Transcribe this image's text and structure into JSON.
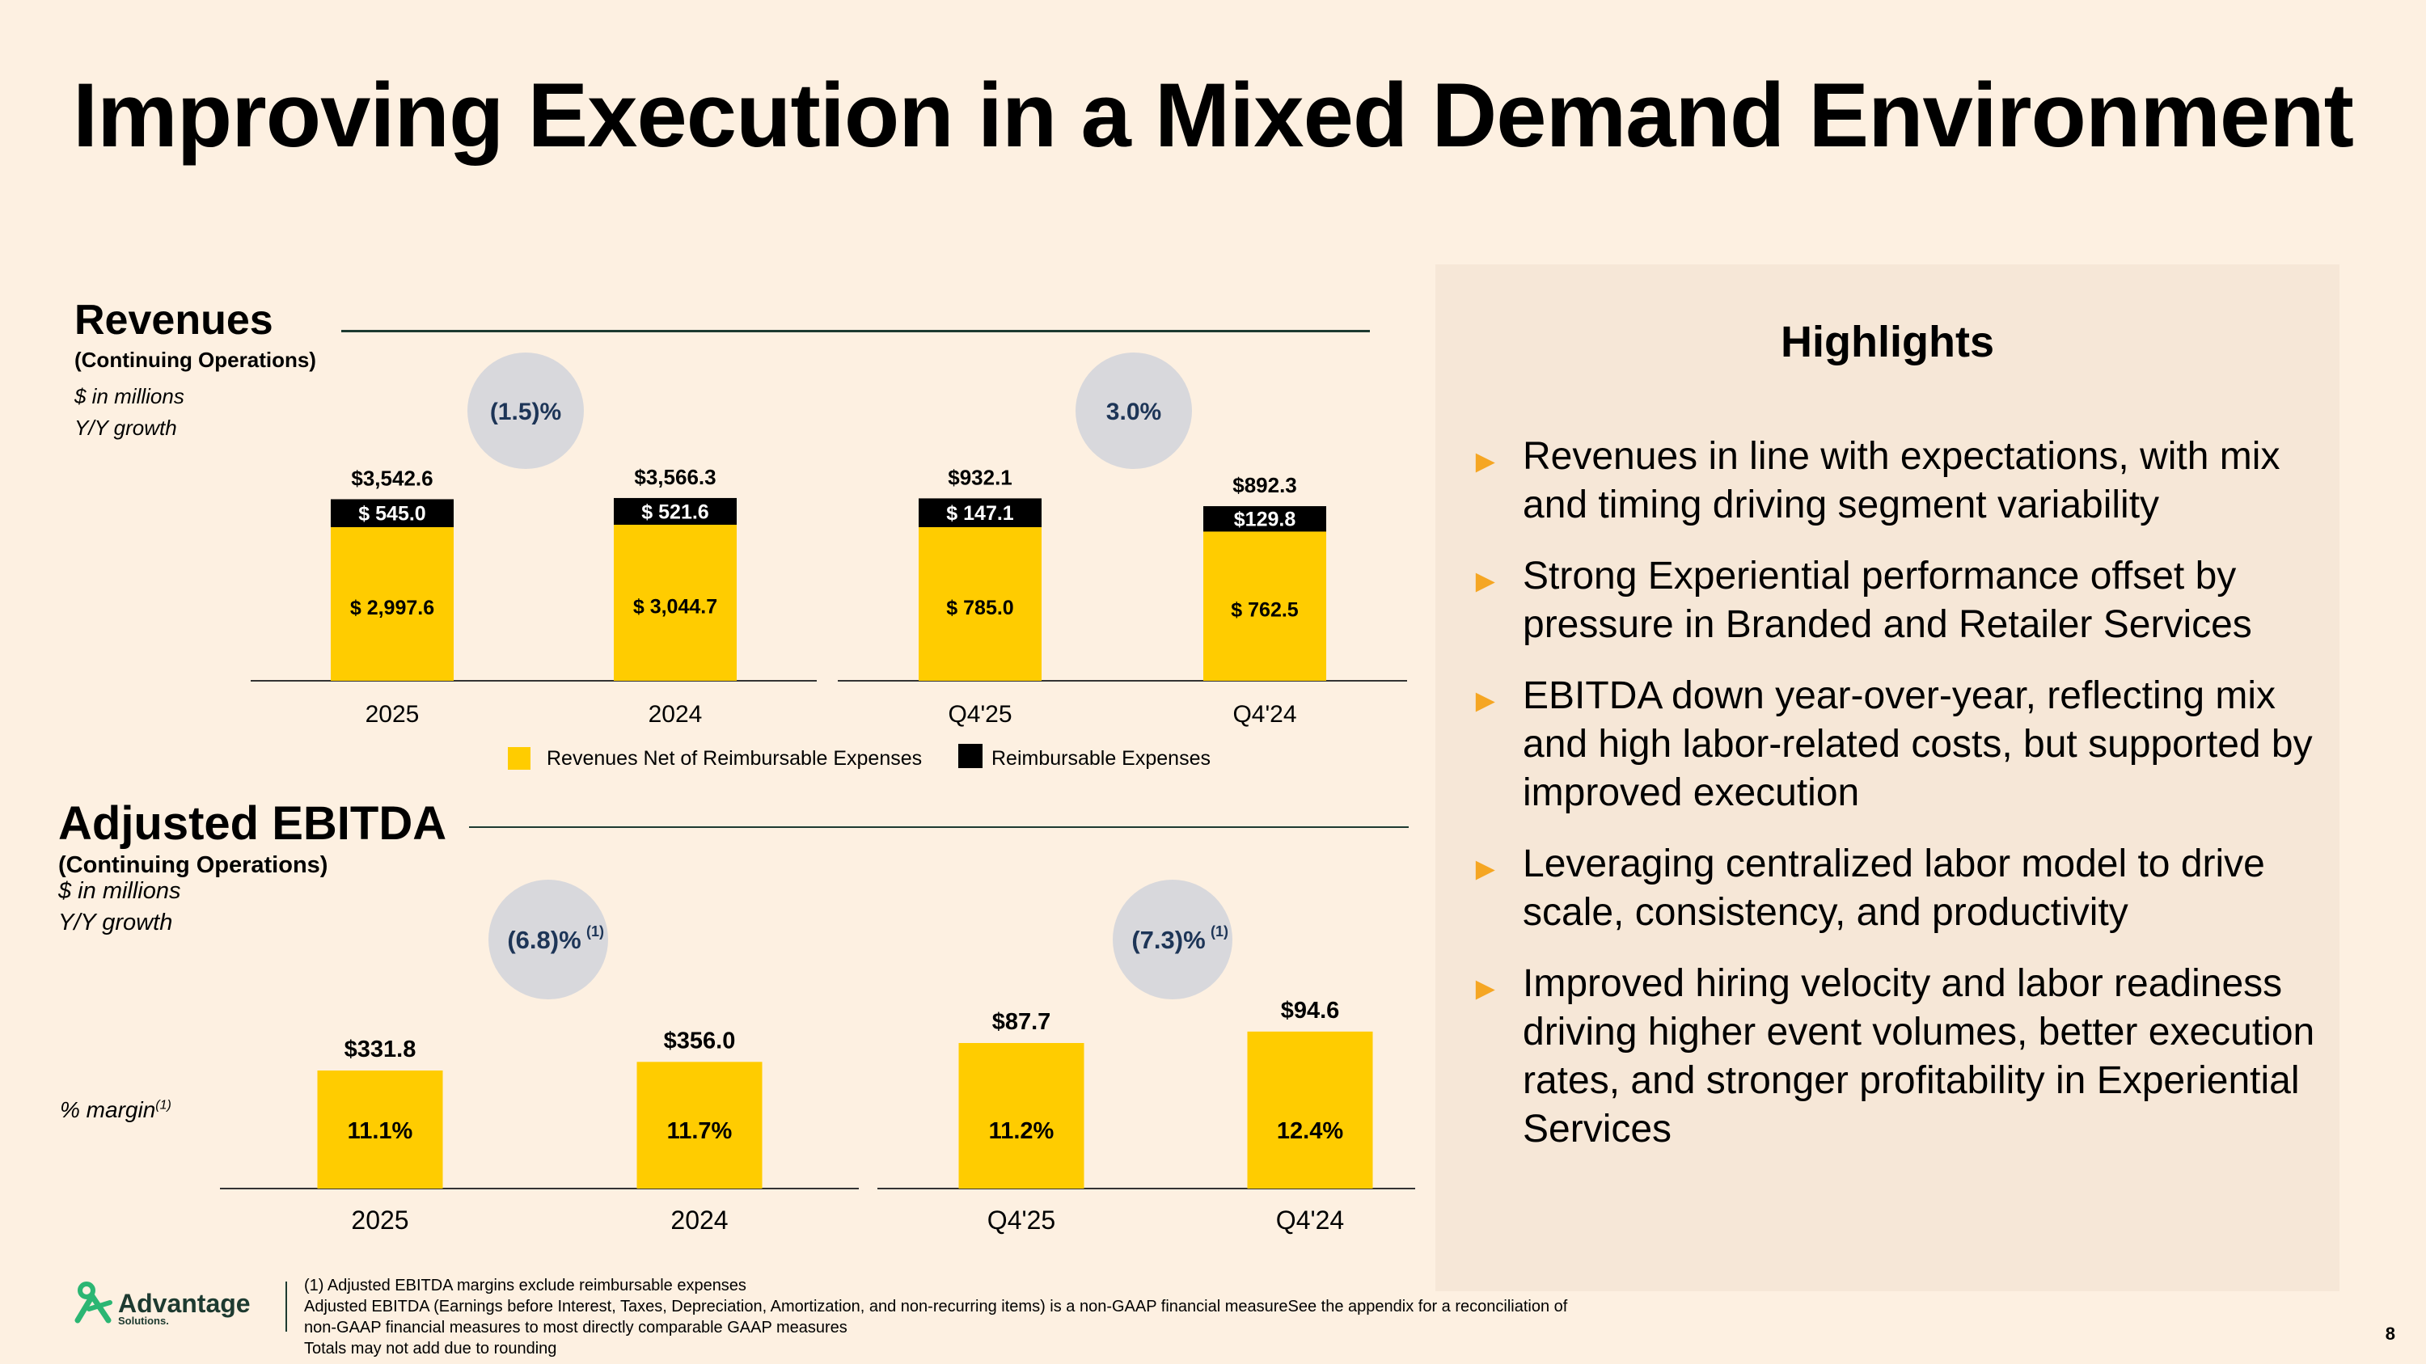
{
  "title": "Improving Execution in a Mixed Demand Environment",
  "colors": {
    "background": "#fdf0e1",
    "panel": "#f6e7d7",
    "bar": "#ffcc00",
    "reimbursable": "#000000",
    "growth_bubble": "#d8d8dc",
    "arrow": "#f5a623",
    "brand": "#1d3a30"
  },
  "revenues": {
    "title": "Revenues",
    "subtitle": "(Continuing Operations)",
    "units": "$ in millions",
    "growth_label": "Y/Y growth",
    "legend": {
      "net": "Revenues Net of Reimbursable Expenses",
      "reimb": "Reimbursable Expenses"
    }
  },
  "ebitda": {
    "title": "Adjusted EBITDA",
    "subtitle": "(Continuing Operations)",
    "units": "$ in millions",
    "growth_label": "Y/Y growth",
    "margin_label": "% margin",
    "margin_sup": "(1)"
  },
  "chart_data": [
    {
      "type": "bar",
      "stacked": true,
      "title": "Revenues",
      "groups": [
        {
          "categories": [
            "2025",
            "2024"
          ],
          "growth": "(1.5)%"
        },
        {
          "categories": [
            "Q4'25",
            "Q4'24"
          ],
          "growth": "3.0%"
        }
      ],
      "categories": [
        "2025",
        "2024",
        "Q4'25",
        "Q4'24"
      ],
      "series": [
        {
          "name": "Revenues Net of Reimbursable Expenses",
          "values": [
            2997.6,
            3044.7,
            785.0,
            762.5
          ],
          "labels": [
            "$ 2,997.6",
            "$ 3,044.7",
            "$ 785.0",
            "$ 762.5"
          ]
        },
        {
          "name": "Reimbursable Expenses",
          "values": [
            545.0,
            521.6,
            147.1,
            129.8
          ],
          "labels": [
            "$ 545.0",
            "$ 521.6",
            "$ 147.1",
            "$129.8"
          ]
        }
      ],
      "totals": [
        "$3,542.6",
        "$3,566.3",
        "$932.1",
        "$892.3"
      ],
      "ylabel": "$ in millions"
    },
    {
      "type": "bar",
      "title": "Adjusted EBITDA",
      "groups": [
        {
          "categories": [
            "2025",
            "2024"
          ],
          "growth": "(6.8)%",
          "growth_sup": "(1)"
        },
        {
          "categories": [
            "Q4'25",
            "Q4'24"
          ],
          "growth": "(7.3)%",
          "growth_sup": "(1)"
        }
      ],
      "categories": [
        "2025",
        "2024",
        "Q4'25",
        "Q4'24"
      ],
      "values": [
        331.8,
        356.0,
        87.7,
        94.6
      ],
      "value_labels": [
        "$331.8",
        "$356.0",
        "$87.7",
        "$94.6"
      ],
      "margins": [
        "11.1%",
        "11.7%",
        "11.2%",
        "12.4%"
      ],
      "ylabel": "$ in millions"
    }
  ],
  "highlights": {
    "title": "Highlights",
    "items": [
      "Revenues in line with expectations, with mix and timing driving segment variability",
      "Strong Experiential performance offset by pressure in Branded and Retailer Services",
      "EBITDA down year-over-year, reflecting mix and high labor-related costs, but supported by improved execution",
      "Leveraging centralized labor model to drive scale, consistency, and productivity",
      "Improved hiring velocity and labor readiness driving higher event volumes, better execution rates, and stronger profitability in Experiential Services"
    ]
  },
  "footer": {
    "logo_name": "Advantage",
    "logo_sub": "Solutions.",
    "note1": "(1) Adjusted EBITDA margins exclude reimbursable expenses",
    "note2": "Adjusted EBITDA (Earnings before Interest, Taxes, Depreciation, Amortization, and non-recurring items) is a non-GAAP financial measureSee the appendix for a reconciliation of",
    "note3": "non-GAAP financial measures to most directly comparable GAAP measures",
    "note4": "Totals may not add due to rounding",
    "page": "8"
  }
}
